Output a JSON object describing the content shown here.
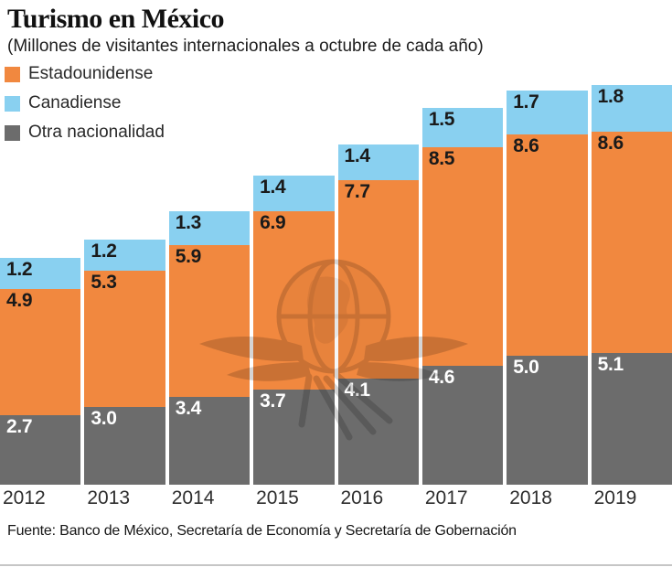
{
  "title": "Turismo en México",
  "subtitle": "(Millones de visitantes internacionales a octubre de cada año)",
  "source": "Fuente: Banco de México, Secretaría de Economía y Secretaría de Gobernación",
  "watermark_icon": "winged-globe-emblem",
  "colors": {
    "estadounidense": "#F1883F",
    "canadiense": "#89D0F0",
    "otra_nacionalidad": "#6C6C6C",
    "label_dark": "#1a1a1a",
    "label_light": "#ffffff",
    "axis_text": "#2e2e2e"
  },
  "legend": [
    {
      "label": "Estadounidense",
      "color": "#F1883F"
    },
    {
      "label": "Canadiense",
      "color": "#89D0F0"
    },
    {
      "label": "Otra nacionalidad",
      "color": "#6C6C6C"
    }
  ],
  "chart_data": {
    "type": "bar",
    "stacked": true,
    "title": "Turismo en México",
    "subtitle": "(Millones de visitantes internacionales a octubre de cada año)",
    "unit": "millones de visitantes",
    "categories": [
      "2012",
      "2013",
      "2014",
      "2015",
      "2016",
      "2017",
      "2018",
      "2019"
    ],
    "series_top_to_bottom": [
      {
        "name": "Canadiense",
        "color": "#89D0F0",
        "text_color": "#1a1a1a",
        "values": [
          1.2,
          1.2,
          1.3,
          1.4,
          1.4,
          1.5,
          1.7,
          1.8
        ]
      },
      {
        "name": "Estadounidense",
        "color": "#F1883F",
        "text_color": "#1a1a1a",
        "values": [
          4.9,
          5.3,
          5.9,
          6.9,
          7.7,
          8.5,
          8.6,
          8.6
        ]
      },
      {
        "name": "Otra nacionalidad",
        "color": "#6C6C6C",
        "text_color": "#ffffff",
        "values": [
          2.7,
          3.0,
          3.4,
          3.7,
          4.1,
          4.6,
          5.0,
          5.1
        ]
      }
    ],
    "totals": [
      8.8,
      9.5,
      10.6,
      12.0,
      13.2,
      14.6,
      15.3,
      15.5
    ],
    "ylim": [
      0,
      16
    ],
    "grid": false,
    "legend_position": "top-left",
    "value_labels": "inside-top-left-of-each-segment",
    "xlabel": "",
    "ylabel": ""
  }
}
